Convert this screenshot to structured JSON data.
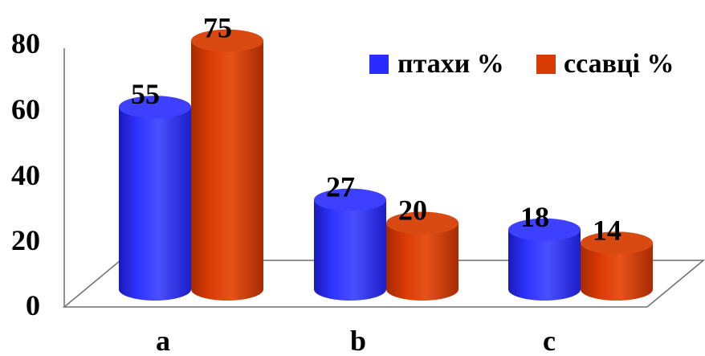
{
  "chart_data": {
    "type": "bar",
    "categories": [
      "a",
      "b",
      "c"
    ],
    "series": [
      {
        "name": "птахи %",
        "values": [
          55,
          27,
          18
        ],
        "color": "#2a2cff"
      },
      {
        "name": "ссавці %",
        "values": [
          75,
          20,
          14
        ],
        "color": "#d83a06"
      }
    ],
    "ylim": [
      0,
      80
    ],
    "yticks": [
      0,
      20,
      40,
      60,
      80
    ],
    "grid": false,
    "legend": "top-right",
    "style": "3d-cylinder"
  }
}
